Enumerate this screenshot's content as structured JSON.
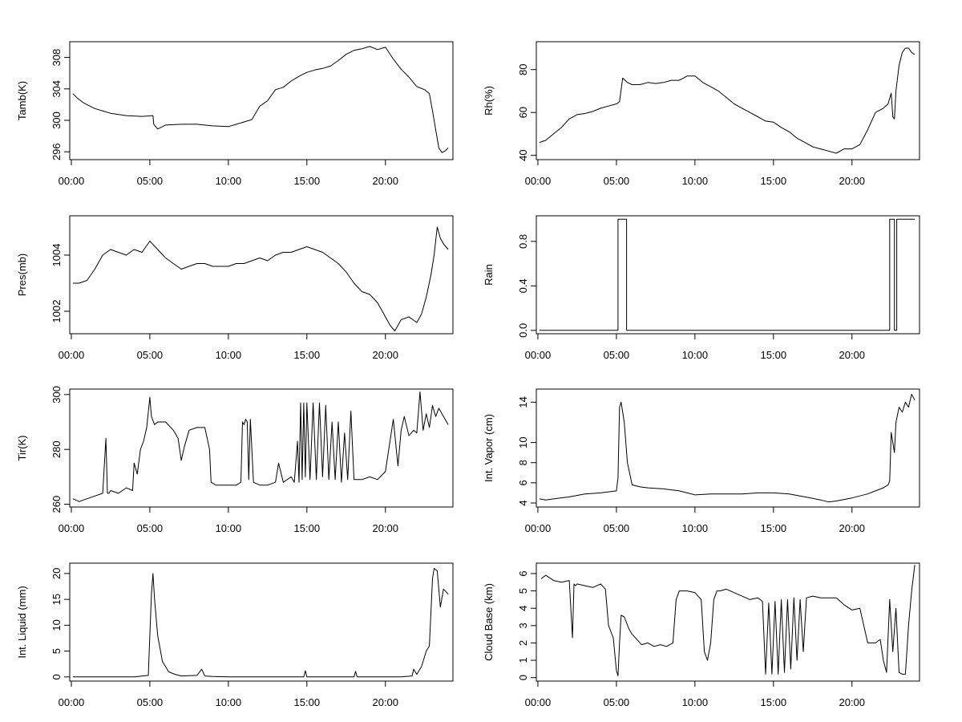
{
  "chart_data": [
    {
      "type": "line",
      "ylabel": "Tamb(K)",
      "ylim": [
        295,
        310
      ],
      "yticks": [
        296,
        300,
        304,
        308
      ],
      "xlim": [
        -0.1,
        24.3
      ],
      "xticks": [
        0,
        5,
        10,
        15,
        20
      ],
      "xtick_labels": [
        "00:00",
        "05:00",
        "10:00",
        "15:00",
        "20:00"
      ],
      "series": [
        {
          "x": [
            0.1,
            0.4,
            0.8,
            1.5,
            2.5,
            3.5,
            4.5,
            5.2,
            5.25,
            5.5,
            6,
            7,
            8,
            9,
            10,
            11,
            11.5,
            12,
            12.5,
            13,
            13.5,
            14,
            14.5,
            15,
            15.5,
            16,
            16.5,
            17,
            17.5,
            18,
            18.5,
            19,
            19.5,
            20,
            20.5,
            21,
            21.5,
            22,
            22.5,
            22.8,
            23,
            23.2,
            23.4,
            23.6,
            23.8,
            24
          ],
          "y": [
            303.4,
            302.8,
            302.2,
            301.5,
            300.9,
            300.6,
            300.5,
            300.6,
            299.5,
            298.9,
            299.4,
            299.5,
            299.5,
            299.3,
            299.2,
            299.8,
            300.1,
            301.8,
            302.5,
            303.9,
            304.2,
            305,
            305.6,
            306.1,
            306.4,
            306.6,
            306.9,
            307.6,
            308.4,
            308.9,
            309.1,
            309.4,
            309.0,
            309.3,
            307.8,
            306.5,
            305.5,
            304.3,
            303.9,
            303.4,
            301.2,
            298.8,
            296.5,
            295.9,
            296.1,
            296.5
          ]
        }
      ]
    },
    {
      "type": "line",
      "ylabel": "Rh(%)",
      "ylim": [
        38,
        93
      ],
      "yticks": [
        40,
        60,
        80
      ],
      "xlim": [
        -0.1,
        24.3
      ],
      "xticks": [
        0,
        5,
        10,
        15,
        20
      ],
      "xtick_labels": [
        "00:00",
        "05:00",
        "10:00",
        "15:00",
        "20:00"
      ],
      "series": [
        {
          "x": [
            0.1,
            0.5,
            1,
            1.5,
            2,
            2.5,
            3,
            3.5,
            4,
            4.5,
            5,
            5.2,
            5.4,
            5.7,
            6,
            6.5,
            7,
            7.5,
            8,
            8.5,
            9,
            9.5,
            10,
            10.5,
            11,
            11.5,
            12,
            12.5,
            13,
            13.5,
            14,
            14.5,
            15,
            15.5,
            16,
            16.5,
            17,
            17.5,
            18,
            18.5,
            19,
            19.5,
            20,
            20.5,
            21,
            21.5,
            22,
            22.3,
            22.5,
            22.6,
            22.7,
            22.8,
            23,
            23.2,
            23.4,
            23.6,
            23.8,
            24
          ],
          "y": [
            46,
            47,
            50,
            53,
            57,
            59,
            59.5,
            60.5,
            62,
            63,
            64,
            65,
            76,
            74,
            73,
            73,
            74,
            73.5,
            74,
            75,
            75,
            77,
            77,
            74,
            72,
            70,
            67,
            64,
            62,
            60,
            58,
            56,
            55.5,
            53,
            51,
            48,
            46,
            44,
            43,
            42,
            41,
            43,
            43,
            45,
            52,
            60,
            62,
            64,
            69,
            58,
            57,
            70,
            82,
            88,
            90,
            90,
            88,
            87
          ]
        }
      ]
    },
    {
      "type": "line",
      "ylabel": "Pres(mb)",
      "ylim": [
        1001.2,
        1005.4
      ],
      "yticks": [
        1002,
        1004
      ],
      "xlim": [
        -0.1,
        24.3
      ],
      "xticks": [
        0,
        5,
        10,
        15,
        20
      ],
      "xtick_labels": [
        "00:00",
        "05:00",
        "10:00",
        "15:00",
        "20:00"
      ],
      "series": [
        {
          "x": [
            0.1,
            0.5,
            1,
            1.5,
            2,
            2.5,
            3,
            3.5,
            4,
            4.5,
            5,
            5.5,
            6,
            6.5,
            7,
            7.5,
            8,
            8.5,
            9,
            9.5,
            10,
            10.5,
            11,
            11.5,
            12,
            12.5,
            13,
            13.5,
            14,
            14.5,
            15,
            15.5,
            16,
            16.5,
            17,
            17.5,
            18,
            18.5,
            19,
            19.5,
            20,
            20.3,
            20.6,
            21,
            21.5,
            22,
            22.3,
            22.6,
            22.9,
            23.1,
            23.3,
            23.5,
            23.7,
            24
          ],
          "y": [
            1003,
            1003,
            1003.1,
            1003.5,
            1004,
            1004.2,
            1004.1,
            1004.0,
            1004.2,
            1004.1,
            1004.5,
            1004.2,
            1003.9,
            1003.7,
            1003.5,
            1003.6,
            1003.7,
            1003.7,
            1003.6,
            1003.6,
            1003.6,
            1003.7,
            1003.7,
            1003.8,
            1003.9,
            1003.8,
            1004.0,
            1004.1,
            1004.1,
            1004.2,
            1004.3,
            1004.2,
            1004.1,
            1003.9,
            1003.7,
            1003.4,
            1003.0,
            1002.7,
            1002.6,
            1002.3,
            1001.8,
            1001.5,
            1001.3,
            1001.7,
            1001.8,
            1001.6,
            1001.9,
            1002.5,
            1003.3,
            1004,
            1005.0,
            1004.6,
            1004.4,
            1004.2
          ]
        }
      ]
    },
    {
      "type": "line",
      "ylabel": "Rain",
      "ylim": [
        -0.03,
        1.03
      ],
      "yticks": [
        0,
        0.4,
        0.8
      ],
      "ytick_labels": [
        "0.0",
        "0.4",
        "0.8"
      ],
      "xlim": [
        -0.1,
        24.3
      ],
      "xticks": [
        0,
        5,
        10,
        15,
        20
      ],
      "xtick_labels": [
        "00:00",
        "05:00",
        "10:00",
        "15:00",
        "20:00"
      ],
      "series": [
        {
          "x": [
            0.1,
            5.1,
            5.1,
            5.65,
            5.65,
            22.4,
            22.4,
            22.7,
            22.7,
            22.85,
            22.85,
            24.0
          ],
          "y": [
            0,
            0,
            1,
            1,
            0,
            0,
            1,
            1,
            0,
            0,
            1,
            1
          ]
        }
      ]
    },
    {
      "type": "line",
      "ylabel": "Tir(K)",
      "ylim": [
        259,
        302
      ],
      "yticks": [
        260,
        280,
        300
      ],
      "xlim": [
        -0.1,
        24.3
      ],
      "xticks": [
        0,
        5,
        10,
        15,
        20
      ],
      "xtick_labels": [
        "00:00",
        "05:00",
        "10:00",
        "15:00",
        "20:00"
      ],
      "series": [
        {
          "x": [
            0.1,
            0.5,
            1,
            1.5,
            2,
            2.2,
            2.3,
            2.4,
            2.5,
            3,
            3.5,
            3.9,
            4,
            4.2,
            4.4,
            4.6,
            4.8,
            5,
            5.1,
            5.3,
            5.5,
            6,
            6.5,
            6.8,
            7,
            7.2,
            7.5,
            8,
            8.5,
            8.8,
            8.9,
            9.2,
            9.5,
            10,
            10.5,
            10.8,
            10.9,
            11,
            11.1,
            11.2,
            11.3,
            11.4,
            11.6,
            12,
            12.5,
            13,
            13.2,
            13.5,
            14,
            14.2,
            14.4,
            14.5,
            14.6,
            14.7,
            14.8,
            14.9,
            15,
            15.2,
            15.4,
            15.6,
            15.8,
            16,
            16.2,
            16.4,
            16.6,
            16.8,
            17,
            17.2,
            17.4,
            17.6,
            17.8,
            18,
            18.5,
            19,
            19.5,
            20,
            20.5,
            20.8,
            21,
            21.2,
            21.5,
            21.8,
            22,
            22.2,
            22.4,
            22.6,
            22.8,
            23,
            23.2,
            23.4,
            23.6,
            23.8,
            24
          ],
          "y": [
            262,
            261,
            262,
            263,
            264,
            284,
            264,
            264,
            265,
            264,
            266,
            265,
            275,
            271,
            280,
            283,
            288,
            299,
            292,
            289,
            290,
            290,
            287,
            284,
            276,
            281,
            287,
            288,
            288,
            280,
            268,
            267,
            267,
            267,
            267,
            268,
            290,
            289,
            291,
            290,
            269,
            291,
            268,
            267,
            267,
            268,
            275,
            268,
            270,
            268,
            283,
            268,
            297,
            269,
            297,
            270,
            297,
            269,
            297,
            269,
            297,
            270,
            296,
            269,
            290,
            269,
            290,
            268,
            286,
            269,
            294,
            269,
            269,
            270,
            269,
            272,
            291,
            274,
            287,
            292,
            285,
            287,
            286,
            301,
            287,
            293,
            288,
            296,
            292,
            295,
            293,
            291,
            289
          ]
        }
      ]
    },
    {
      "type": "line",
      "ylabel": "Int. Vapor (cm)",
      "ylim": [
        3.6,
        15.3
      ],
      "yticks": [
        4,
        6,
        8,
        10,
        14
      ],
      "xlim": [
        -0.1,
        24.3
      ],
      "xticks": [
        0,
        5,
        10,
        15,
        20
      ],
      "xtick_labels": [
        "00:00",
        "05:00",
        "10:00",
        "15:00",
        "20:00"
      ],
      "series": [
        {
          "x": [
            0.1,
            0.5,
            1,
            2,
            3,
            4,
            5,
            5.1,
            5.2,
            5.3,
            5.5,
            5.7,
            6,
            6.5,
            7,
            8,
            9,
            10,
            11,
            12,
            13,
            14,
            15,
            16,
            17,
            18,
            18.5,
            19,
            20,
            21,
            21.5,
            22,
            22.3,
            22.4,
            22.5,
            22.6,
            22.7,
            22.8,
            23,
            23.2,
            23.4,
            23.6,
            23.8,
            24
          ],
          "y": [
            4.4,
            4.3,
            4.4,
            4.6,
            4.9,
            5.0,
            5.2,
            6.5,
            13.5,
            14,
            12,
            8,
            5.8,
            5.6,
            5.5,
            5.4,
            5.2,
            4.8,
            4.9,
            4.9,
            4.9,
            5.0,
            5.0,
            4.9,
            4.6,
            4.3,
            4.1,
            4.2,
            4.5,
            4.9,
            5.2,
            5.5,
            5.8,
            6.2,
            11,
            10,
            9,
            12,
            13.5,
            13,
            14,
            13.5,
            14.8,
            14.2
          ]
        }
      ]
    },
    {
      "type": "line",
      "ylabel": "Int. Liquid (mm)",
      "ylim": [
        -0.8,
        22
      ],
      "yticks": [
        0,
        5,
        10,
        15,
        20
      ],
      "xlim": [
        -0.1,
        24.3
      ],
      "xticks": [
        0,
        5,
        10,
        15,
        20
      ],
      "xtick_labels": [
        "00:00",
        "05:00",
        "10:00",
        "15:00",
        "20:00"
      ],
      "series": [
        {
          "x": [
            0.1,
            1,
            2,
            3,
            4,
            4.9,
            5.0,
            5.1,
            5.2,
            5.3,
            5.5,
            5.8,
            6.2,
            6.6,
            7,
            8,
            8.3,
            8.5,
            9,
            10,
            11,
            12,
            13,
            14,
            14.8,
            14.9,
            15,
            16,
            17,
            18,
            18.1,
            18.2,
            19,
            20,
            21,
            21.7,
            21.8,
            22,
            22.3,
            22.6,
            22.8,
            23,
            23.1,
            23.3,
            23.5,
            23.7,
            24
          ],
          "y": [
            0,
            0,
            0,
            0,
            0,
            0.3,
            8,
            16,
            20,
            15,
            8,
            3,
            1,
            0.5,
            0.2,
            0.3,
            1.5,
            0.2,
            0.1,
            0,
            0,
            0,
            0,
            0,
            0,
            1.2,
            0,
            0,
            0,
            0,
            1.1,
            0,
            0,
            0,
            0,
            0.2,
            1.5,
            0.5,
            2,
            5,
            6,
            19,
            21,
            20.5,
            13.5,
            17,
            16
          ]
        }
      ]
    },
    {
      "type": "line",
      "ylabel": "Cloud Base (km)",
      "ylim": [
        -0.2,
        6.6
      ],
      "yticks": [
        0,
        1,
        2,
        3,
        4,
        5,
        6
      ],
      "xlim": [
        -0.1,
        24.3
      ],
      "xticks": [
        0,
        5,
        10,
        15,
        20
      ],
      "xtick_labels": [
        "00:00",
        "05:00",
        "10:00",
        "15:00",
        "20:00"
      ],
      "series": [
        {
          "x": [
            0.2,
            0.5,
            1,
            1.5,
            2,
            2.2,
            2.3,
            2.4,
            2.5,
            3,
            3.5,
            4,
            4.3,
            4.5,
            4.8,
            5.0,
            5.1,
            5.2,
            5.3,
            5.5,
            5.8,
            6,
            6.3,
            6.6,
            7,
            7.4,
            7.8,
            8.2,
            8.6,
            8.8,
            9,
            9.5,
            10,
            10.4,
            10.6,
            10.8,
            11,
            11.2,
            11.4,
            11.6,
            12,
            12.5,
            13,
            13.5,
            14,
            14.3,
            14.5,
            14.7,
            14.9,
            15.1,
            15.3,
            15.5,
            15.7,
            15.9,
            16.1,
            16.3,
            16.5,
            16.7,
            16.9,
            17.1,
            17.5,
            18,
            18.5,
            19,
            19.5,
            20,
            20.5,
            21,
            21.5,
            21.8,
            22,
            22.2,
            22.4,
            22.6,
            22.8,
            23,
            23.2,
            23.4,
            23.6,
            23.8,
            24
          ],
          "y": [
            5.7,
            5.9,
            5.6,
            5.5,
            5.6,
            2.3,
            5.4,
            5.3,
            5.4,
            5.3,
            5.2,
            5.4,
            5.1,
            3.0,
            2.3,
            0.4,
            0.1,
            2.0,
            3.6,
            3.5,
            2.8,
            2.5,
            2.2,
            1.9,
            2.0,
            1.8,
            1.9,
            1.8,
            2.0,
            4.5,
            5.0,
            5.0,
            4.9,
            4.5,
            1.5,
            1.0,
            2.0,
            4.5,
            5.0,
            5.0,
            5.1,
            4.9,
            4.7,
            4.5,
            4.6,
            4.4,
            0.2,
            4.3,
            0.2,
            4.4,
            0.2,
            4.5,
            0.3,
            4.5,
            0.5,
            4.6,
            1.0,
            4.5,
            1.5,
            4.6,
            4.7,
            4.6,
            4.6,
            4.6,
            4.2,
            3.9,
            4.0,
            2.0,
            2.0,
            2.2,
            1.0,
            0.3,
            4.5,
            1.5,
            4.0,
            0.3,
            0.2,
            0.2,
            3.0,
            5.0,
            6.5
          ]
        }
      ]
    }
  ]
}
